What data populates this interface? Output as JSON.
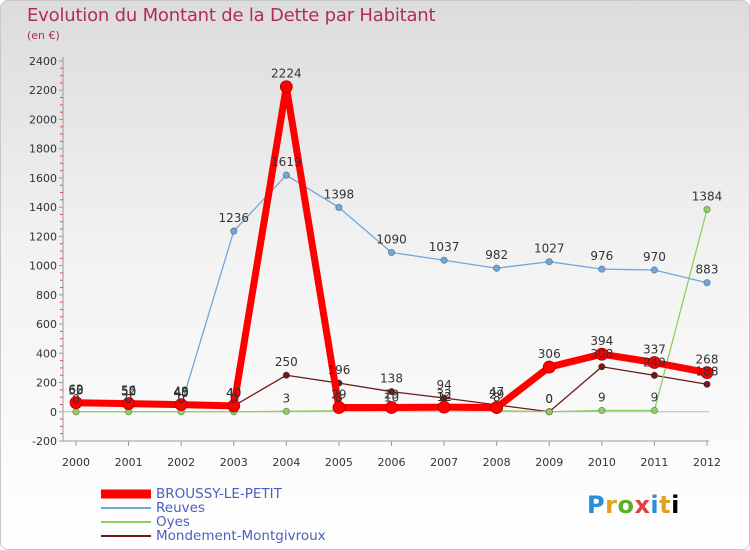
{
  "title": "Evolution du Montant de la Dette par Habitant",
  "subtitle": "(en €)",
  "logo_text": "Proxiti",
  "chart_data": {
    "type": "line",
    "title": "Evolution du Montant de la Dette par Habitant",
    "ylabel": "(en €)",
    "xlabel": "",
    "ylim": [
      -200,
      2400
    ],
    "yticks": [
      -200,
      0,
      200,
      400,
      600,
      800,
      1000,
      1200,
      1400,
      1600,
      1800,
      2000,
      2200,
      2400
    ],
    "x": [
      "2000",
      "2001",
      "2002",
      "2003",
      "2004",
      "2005",
      "2006",
      "2007",
      "2008",
      "2009",
      "2010",
      "2011",
      "2012"
    ],
    "grid": false,
    "legend_position": "bottom-left",
    "series": [
      {
        "name": "Mondement-Montgivroux",
        "color": "#6e1a1a",
        "width": 1.3,
        "values": [
          55,
          50,
          40,
          40,
          250,
          196,
          138,
          94,
          47,
          0,
          308,
          249,
          188
        ],
        "labels": [
          "55",
          "50",
          "40",
          "40",
          "250",
          "196",
          "138",
          "94",
          "47",
          "0",
          "308",
          "249",
          "188"
        ]
      },
      {
        "name": "Oyes",
        "color": "#8fd060",
        "width": 1.3,
        "values": [
          0,
          0,
          0,
          0,
          3,
          8,
          10,
          12,
          8,
          0,
          9,
          9,
          1384
        ],
        "labels": [
          "0",
          "0",
          "0",
          "0",
          "3",
          "8",
          "10",
          "12",
          "8",
          "0",
          "9",
          "9",
          "1384"
        ]
      },
      {
        "name": "Reuves",
        "color": "#6fa8dc",
        "width": 1.3,
        "values": [
          60,
          52,
          45,
          1236,
          1619,
          1398,
          1090,
          1037,
          982,
          1027,
          976,
          970,
          883
        ],
        "labels": [
          "60",
          "52",
          "45",
          "1236",
          "1619",
          "1398",
          "1090",
          "1037",
          "982",
          "1027",
          "976",
          "970",
          "883"
        ]
      },
      {
        "name": "BROUSSY-LE-PETIT",
        "color": "#ff0000",
        "width": 7,
        "values": [
          62,
          56,
          49,
          40,
          2224,
          29,
          29,
          32,
          29,
          306,
          394,
          337,
          268
        ],
        "labels": [
          "62",
          "56",
          "49",
          "40",
          "2224",
          "29",
          "29",
          "32",
          "29",
          "306",
          "394",
          "337",
          "268"
        ]
      }
    ]
  },
  "legend": [
    {
      "name": "BROUSSY-LE-PETIT",
      "color": "#ff0000",
      "thickness": "thick"
    },
    {
      "name": "Reuves",
      "color": "#6fa8dc",
      "thickness": "thin"
    },
    {
      "name": "Oyes",
      "color": "#8fd060",
      "thickness": "thin"
    },
    {
      "name": "Mondement-Montgivroux",
      "color": "#6e1a1a",
      "thickness": "thin"
    }
  ]
}
